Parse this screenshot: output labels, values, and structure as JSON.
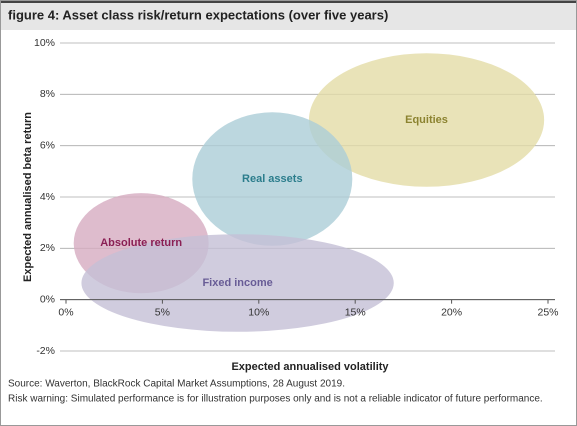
{
  "chart_data": {
    "type": "ellipse",
    "title": "figure 4: Asset class risk/return expectations (over five years)",
    "x_label": "Expected annualised volatility",
    "y_label": "Expected annualised beta return",
    "source": "Source: Waverton, BlackRock Capital Market Assumptions, 28 August 2019.",
    "note": "Risk warning: Simulated performance is for illustration purposes only and is not a reliable indicator of future performance.",
    "xlim": [
      0,
      25
    ],
    "xticks": [
      {
        "value": 0,
        "label": "0%"
      },
      {
        "value": 5,
        "label": "5%"
      },
      {
        "value": 10,
        "label": "10%"
      },
      {
        "value": 15,
        "label": "15%"
      },
      {
        "value": 20,
        "label": "20%"
      },
      {
        "value": 25,
        "label": "25%"
      }
    ],
    "ylim": [
      -2,
      10
    ],
    "yticks": [
      {
        "value": -2,
        "label": "-2%"
      },
      {
        "value": 0,
        "label": "0%"
      },
      {
        "value": 2,
        "label": "2%"
      },
      {
        "value": 4,
        "label": "4%"
      },
      {
        "value": 6,
        "label": "6%"
      },
      {
        "value": 8,
        "label": "8%"
      },
      {
        "value": 10,
        "label": "10%"
      }
    ],
    "grid": true,
    "series": [
      {
        "name": "Equities",
        "color": "#e3dca6",
        "label_color": "#8c8330",
        "x": 18.7,
        "y": 7.0,
        "rx": 6.1,
        "ry": 2.6
      },
      {
        "name": "Real assets",
        "color": "#abcdd7",
        "label_color": "#2b7d8c",
        "x": 10.7,
        "y": 4.7,
        "rx": 4.15,
        "ry": 2.6
      },
      {
        "name": "Absolute return",
        "color": "#d6abc0",
        "label_color": "#8a1f54",
        "x": 3.9,
        "y": 2.2,
        "rx": 3.5,
        "ry": 1.95
      },
      {
        "name": "Fixed income",
        "color": "#c4bfd6",
        "label_color": "#685c96",
        "x": 8.9,
        "y": 0.65,
        "rx": 8.1,
        "ry": 1.9
      }
    ]
  }
}
